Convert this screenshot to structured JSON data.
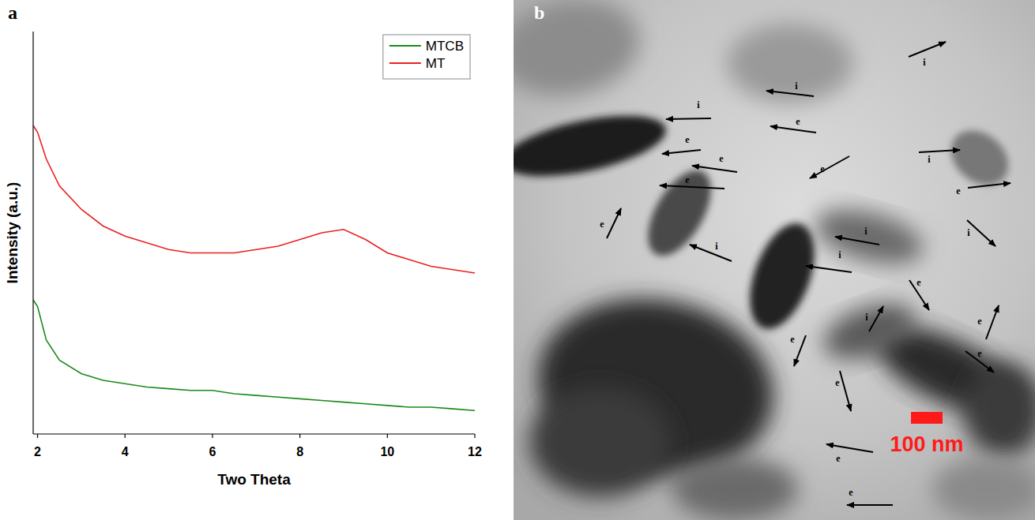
{
  "chart_data": {
    "type": "line",
    "panel_label": "a",
    "x_label": "Two Theta",
    "y_label": "Intensity (a.u.)",
    "x": [
      1.9,
      2.0,
      2.2,
      2.5,
      3,
      3.5,
      4,
      4.5,
      5,
      5.5,
      6,
      6.5,
      7,
      7.5,
      8,
      8.5,
      9,
      9.5,
      10,
      10.5,
      11,
      11.5,
      12
    ],
    "series": [
      {
        "name": "MTCB",
        "color": "#1a8a1a",
        "values": [
          40,
          38,
          28,
          22,
          18,
          16,
          15,
          14,
          13.5,
          13,
          13,
          12,
          11.5,
          11,
          10.5,
          10,
          9.5,
          9,
          8.5,
          8,
          8,
          7.5,
          7
        ]
      },
      {
        "name": "MT",
        "color": "#e8211f",
        "values": [
          92,
          90,
          82,
          74,
          67,
          62,
          59,
          57,
          55,
          54,
          54,
          54,
          55,
          56,
          58,
          60,
          61,
          58,
          54,
          52,
          50,
          49,
          48
        ]
      }
    ],
    "xlim": [
      1.9,
      12
    ],
    "xticks": [
      2,
      4,
      6,
      8,
      10,
      12
    ],
    "ylim": [
      0,
      120
    ],
    "yticks": [],
    "tick_labels": "x",
    "legend": "upper right",
    "grid": false
  },
  "image_panel": {
    "panel_label": "b",
    "scale_bar": "100 nm",
    "annotations": [
      "i",
      "i",
      "i",
      "e",
      "e",
      "e",
      "e",
      "i",
      "e",
      "e",
      "e",
      "i",
      "i",
      "i",
      "i",
      "e",
      "i",
      "e",
      "e",
      "e",
      "e",
      "e",
      "e"
    ]
  }
}
